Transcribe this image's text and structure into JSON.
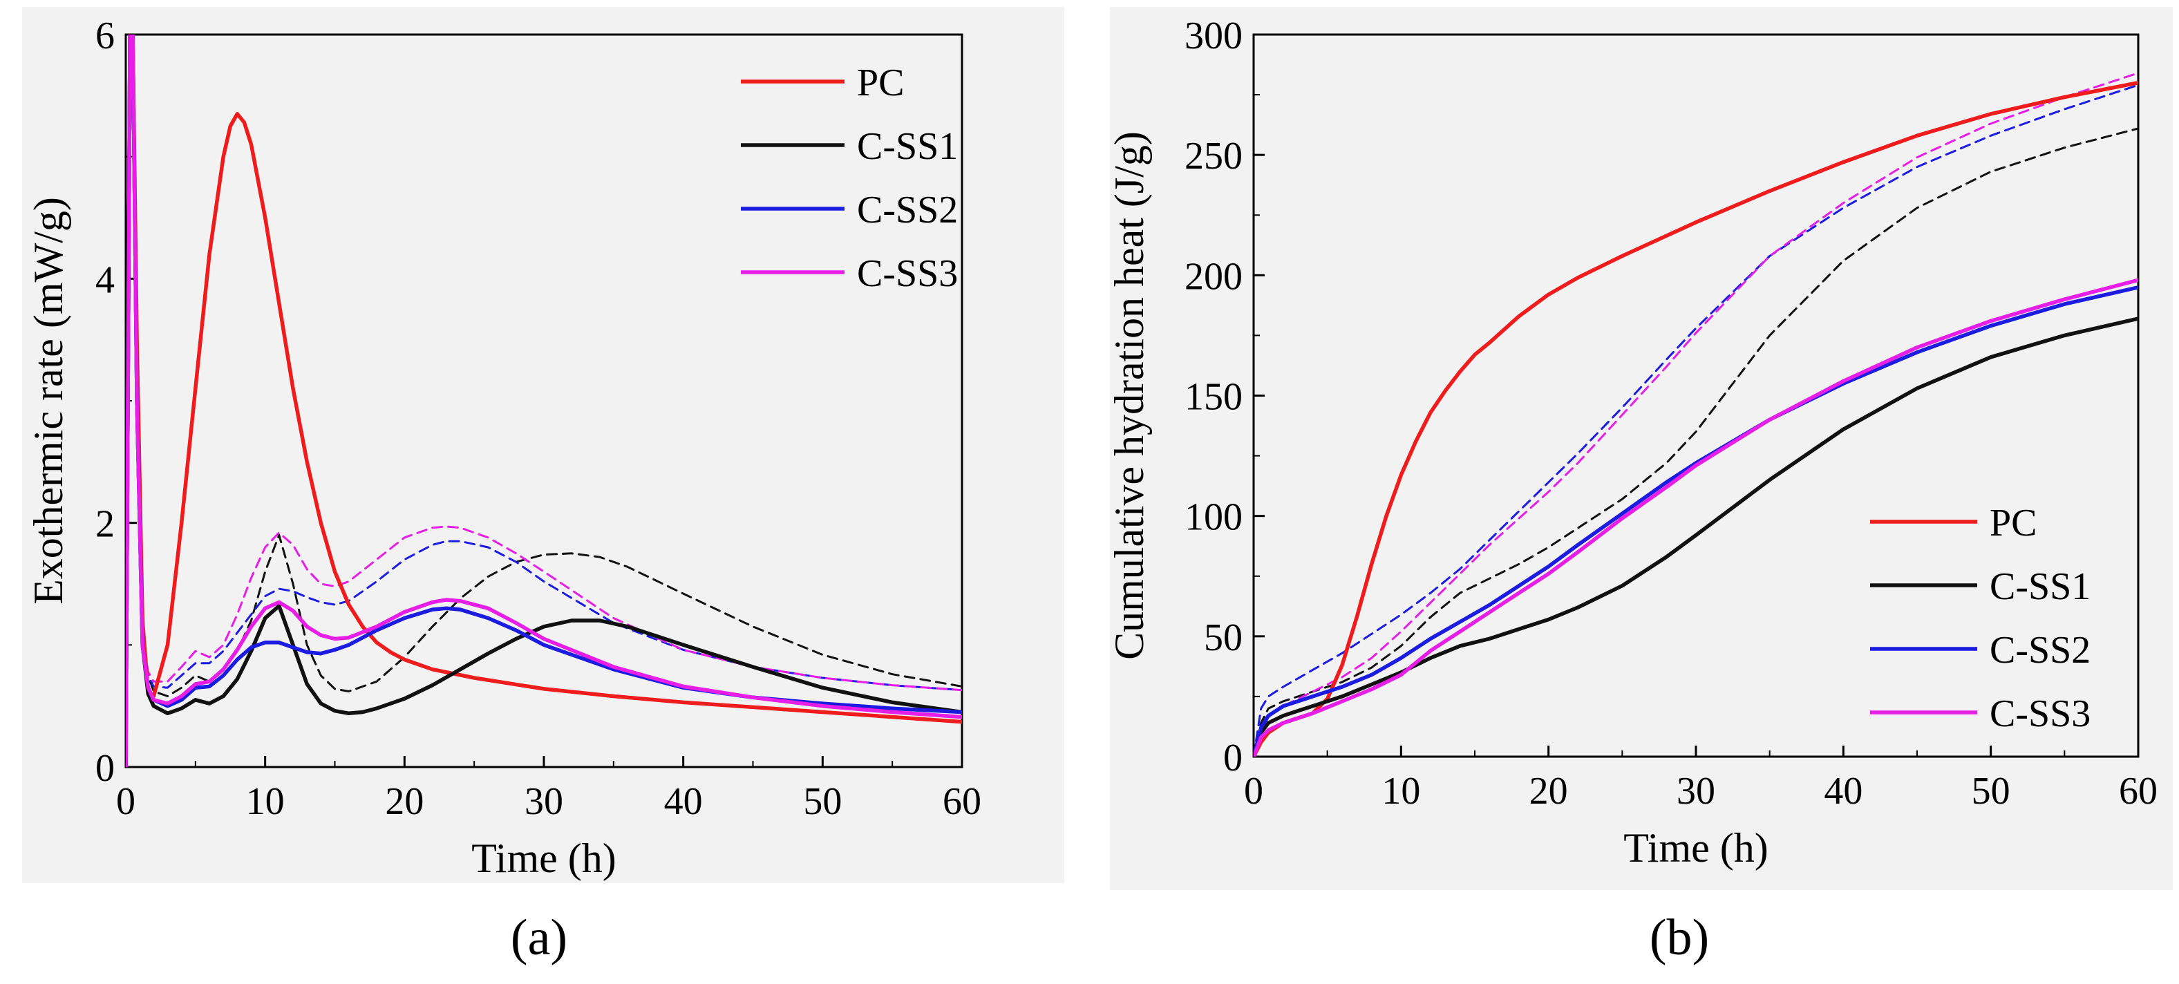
{
  "captions": {
    "a": "(a)",
    "b": "(b)"
  },
  "colors": {
    "PC": "#ee1c1c",
    "C-SS1": "#111111",
    "C-SS2": "#1c1ce0",
    "C-SS3": "#e61ee6"
  },
  "chart_data": [
    {
      "type": "line",
      "panel": "(a)",
      "xlabel": "Time (h)",
      "ylabel": "Exothermic rate (mW/g)",
      "xlim": [
        0,
        60
      ],
      "ylim": [
        0,
        6
      ],
      "xticks": [
        0,
        10,
        20,
        30,
        40,
        50,
        60
      ],
      "yticks": [
        0,
        2,
        4,
        6
      ],
      "legend": [
        "PC",
        "C-SS1",
        "C-SS2",
        "C-SS3"
      ],
      "legend_position": "top-right",
      "series": [
        {
          "name": "PC",
          "style": "solid",
          "x": [
            0,
            0.3,
            0.5,
            0.8,
            1.2,
            1.6,
            2,
            3,
            4,
            5,
            6,
            7,
            7.5,
            8,
            8.5,
            9,
            10,
            11,
            12,
            13,
            14,
            15,
            16,
            17,
            18,
            19,
            20,
            22,
            25,
            30,
            35,
            40,
            45,
            50,
            55,
            60
          ],
          "y": [
            0,
            6,
            6,
            3.5,
            1.2,
            0.62,
            0.58,
            1.0,
            2.0,
            3.1,
            4.2,
            5.0,
            5.25,
            5.35,
            5.28,
            5.1,
            4.5,
            3.8,
            3.1,
            2.5,
            2.0,
            1.6,
            1.33,
            1.15,
            1.02,
            0.94,
            0.88,
            0.8,
            0.73,
            0.64,
            0.58,
            0.53,
            0.49,
            0.45,
            0.41,
            0.37
          ]
        },
        {
          "name": "C-SS1",
          "style": "solid",
          "x": [
            0,
            0.3,
            0.5,
            0.8,
            1.2,
            1.6,
            2,
            3,
            4,
            5,
            6,
            7,
            8,
            9,
            10,
            11,
            12,
            13,
            14,
            15,
            16,
            17,
            18,
            20,
            22,
            24,
            26,
            28,
            30,
            32,
            34,
            36,
            40,
            45,
            50,
            55,
            60
          ],
          "y": [
            0,
            6,
            6,
            3,
            1.0,
            0.6,
            0.5,
            0.44,
            0.48,
            0.55,
            0.52,
            0.58,
            0.72,
            0.95,
            1.22,
            1.32,
            1.0,
            0.68,
            0.52,
            0.46,
            0.44,
            0.45,
            0.48,
            0.56,
            0.67,
            0.8,
            0.93,
            1.05,
            1.15,
            1.2,
            1.2,
            1.15,
            1.0,
            0.82,
            0.65,
            0.53,
            0.45
          ]
        },
        {
          "name": "C-SS2",
          "style": "solid",
          "x": [
            0,
            0.3,
            0.5,
            0.8,
            1.2,
            1.6,
            2,
            3,
            4,
            5,
            6,
            7,
            8,
            9,
            10,
            11,
            12,
            13,
            14,
            15,
            16,
            18,
            20,
            22,
            23,
            24,
            26,
            28,
            30,
            35,
            40,
            45,
            50,
            55,
            60
          ],
          "y": [
            0,
            6,
            6,
            3,
            1.0,
            0.65,
            0.55,
            0.5,
            0.55,
            0.65,
            0.66,
            0.75,
            0.88,
            0.98,
            1.02,
            1.02,
            0.98,
            0.94,
            0.93,
            0.96,
            1.0,
            1.12,
            1.22,
            1.29,
            1.3,
            1.29,
            1.22,
            1.12,
            1.0,
            0.8,
            0.65,
            0.57,
            0.52,
            0.48,
            0.45
          ]
        },
        {
          "name": "C-SS3",
          "style": "solid",
          "x": [
            0,
            0.3,
            0.5,
            0.8,
            1.2,
            1.6,
            2,
            3,
            4,
            5,
            6,
            7,
            8,
            9,
            10,
            11,
            12,
            13,
            14,
            15,
            16,
            18,
            20,
            22,
            23,
            24,
            26,
            28,
            30,
            35,
            40,
            45,
            50,
            55,
            60
          ],
          "y": [
            0,
            6,
            6,
            3,
            1.0,
            0.65,
            0.55,
            0.52,
            0.58,
            0.68,
            0.7,
            0.8,
            0.96,
            1.15,
            1.3,
            1.35,
            1.28,
            1.15,
            1.08,
            1.05,
            1.06,
            1.15,
            1.27,
            1.35,
            1.37,
            1.36,
            1.3,
            1.18,
            1.05,
            0.82,
            0.66,
            0.57,
            0.5,
            0.45,
            0.41
          ]
        },
        {
          "name": "C-SS1 (dashed)",
          "style": "dashed",
          "color_key": "C-SS1",
          "x": [
            0,
            0.3,
            0.5,
            0.8,
            1.2,
            1.6,
            2,
            3,
            4,
            5,
            6,
            7,
            8,
            9,
            10,
            11,
            12,
            13,
            14,
            15,
            16,
            18,
            20,
            22,
            24,
            26,
            28,
            30,
            32,
            34,
            36,
            40,
            45,
            50,
            55,
            60
          ],
          "y": [
            0,
            6,
            6,
            3,
            1.1,
            0.75,
            0.62,
            0.58,
            0.65,
            0.75,
            0.7,
            0.8,
            0.95,
            1.2,
            1.6,
            1.9,
            1.5,
            1.0,
            0.75,
            0.64,
            0.62,
            0.7,
            0.9,
            1.15,
            1.38,
            1.56,
            1.68,
            1.74,
            1.75,
            1.72,
            1.64,
            1.42,
            1.15,
            0.92,
            0.76,
            0.66
          ]
        },
        {
          "name": "C-SS2 (dashed)",
          "style": "dashed",
          "color_key": "C-SS2",
          "x": [
            0,
            0.3,
            0.5,
            0.8,
            1.2,
            1.6,
            2,
            3,
            4,
            5,
            6,
            7,
            8,
            9,
            10,
            11,
            12,
            13,
            14,
            15,
            16,
            18,
            20,
            22,
            23,
            24,
            26,
            28,
            30,
            35,
            40,
            45,
            50,
            55,
            60
          ],
          "y": [
            0,
            6,
            6,
            3,
            1.1,
            0.75,
            0.66,
            0.65,
            0.75,
            0.85,
            0.85,
            0.95,
            1.1,
            1.25,
            1.4,
            1.46,
            1.44,
            1.39,
            1.35,
            1.33,
            1.36,
            1.52,
            1.7,
            1.82,
            1.85,
            1.85,
            1.8,
            1.68,
            1.52,
            1.18,
            0.96,
            0.82,
            0.73,
            0.67,
            0.63
          ]
        },
        {
          "name": "C-SS3 (dashed)",
          "style": "dashed",
          "color_key": "C-SS3",
          "x": [
            0,
            0.3,
            0.5,
            0.8,
            1.2,
            1.6,
            2,
            3,
            4,
            5,
            6,
            7,
            8,
            9,
            10,
            11,
            12,
            13,
            14,
            15,
            16,
            18,
            20,
            22,
            23,
            24,
            26,
            28,
            30,
            35,
            40,
            45,
            50,
            55,
            60
          ],
          "y": [
            0,
            6,
            6,
            3,
            1.1,
            0.78,
            0.7,
            0.7,
            0.82,
            0.95,
            0.9,
            1.0,
            1.25,
            1.55,
            1.8,
            1.92,
            1.82,
            1.62,
            1.5,
            1.48,
            1.52,
            1.7,
            1.88,
            1.96,
            1.97,
            1.96,
            1.88,
            1.75,
            1.6,
            1.22,
            0.96,
            0.82,
            0.73,
            0.67,
            0.63
          ]
        }
      ]
    },
    {
      "type": "line",
      "panel": "(b)",
      "xlabel": "Time (h)",
      "ylabel": "Cumulative hydration heat (J/g)",
      "xlim": [
        0,
        60
      ],
      "ylim": [
        0,
        300
      ],
      "xticks": [
        0,
        10,
        20,
        30,
        40,
        50,
        60
      ],
      "yticks": [
        0,
        50,
        100,
        150,
        200,
        250,
        300
      ],
      "legend": [
        "PC",
        "C-SS1",
        "C-SS2",
        "C-SS3"
      ],
      "legend_position": "bottom-right",
      "series": [
        {
          "name": "PC",
          "style": "solid",
          "x": [
            0,
            0.5,
            1,
            2,
            3,
            4,
            5,
            6,
            7,
            8,
            9,
            10,
            11,
            12,
            13,
            14,
            15,
            16,
            18,
            20,
            22,
            25,
            30,
            35,
            40,
            45,
            50,
            55,
            60
          ],
          "y": [
            0,
            6,
            10,
            14,
            16,
            18,
            24,
            38,
            58,
            80,
            100,
            117,
            131,
            143,
            152,
            160,
            167,
            172,
            183,
            192,
            199,
            208,
            222,
            235,
            247,
            258,
            267,
            274,
            280
          ]
        },
        {
          "name": "C-SS1",
          "style": "solid",
          "x": [
            0,
            0.5,
            1,
            2,
            3,
            4,
            5,
            6,
            8,
            10,
            12,
            14,
            16,
            18,
            20,
            22,
            25,
            28,
            30,
            35,
            40,
            45,
            50,
            55,
            60
          ],
          "y": [
            0,
            10,
            14,
            17,
            19,
            21,
            23,
            25,
            30,
            35,
            41,
            46,
            49,
            53,
            57,
            62,
            71,
            83,
            92,
            115,
            136,
            153,
            166,
            175,
            182
          ]
        },
        {
          "name": "C-SS2",
          "style": "solid",
          "x": [
            0,
            0.5,
            1,
            2,
            4,
            6,
            8,
            10,
            12,
            14,
            16,
            18,
            20,
            22,
            25,
            28,
            30,
            35,
            40,
            45,
            50,
            55,
            60
          ],
          "y": [
            0,
            12,
            17,
            21,
            25,
            29,
            34,
            41,
            49,
            56,
            63,
            71,
            79,
            88,
            101,
            114,
            122,
            140,
            155,
            168,
            179,
            188,
            195
          ]
        },
        {
          "name": "C-SS3",
          "style": "solid",
          "x": [
            0,
            0.5,
            1,
            2,
            4,
            6,
            8,
            10,
            12,
            14,
            16,
            18,
            20,
            22,
            25,
            28,
            30,
            35,
            40,
            45,
            50,
            55,
            60
          ],
          "y": [
            0,
            8,
            11,
            14,
            18,
            23,
            28,
            34,
            44,
            52,
            60,
            68,
            76,
            85,
            99,
            112,
            121,
            140,
            156,
            170,
            181,
            190,
            198
          ]
        },
        {
          "name": "C-SS1 (dashed)",
          "style": "dashed",
          "color_key": "C-SS1",
          "x": [
            0,
            0.5,
            1,
            2,
            4,
            6,
            8,
            10,
            12,
            14,
            16,
            18,
            20,
            22,
            25,
            28,
            30,
            35,
            40,
            45,
            50,
            55,
            60
          ],
          "y": [
            0,
            14,
            20,
            23,
            27,
            31,
            37,
            46,
            58,
            68,
            74,
            80,
            87,
            95,
            107,
            122,
            135,
            175,
            206,
            228,
            243,
            253,
            261
          ]
        },
        {
          "name": "C-SS2 (dashed)",
          "style": "dashed",
          "color_key": "C-SS2",
          "x": [
            0,
            0.5,
            1,
            2,
            4,
            6,
            8,
            10,
            12,
            14,
            16,
            18,
            20,
            22,
            25,
            28,
            30,
            35,
            40,
            45,
            50,
            55,
            60
          ],
          "y": [
            0,
            20,
            25,
            29,
            36,
            43,
            51,
            59,
            68,
            78,
            90,
            102,
            114,
            126,
            145,
            165,
            178,
            208,
            228,
            245,
            258,
            269,
            279
          ]
        },
        {
          "name": "C-SS3 (dashed)",
          "style": "dashed",
          "color_key": "C-SS3",
          "x": [
            0,
            0.5,
            1,
            2,
            4,
            6,
            8,
            10,
            12,
            14,
            16,
            18,
            20,
            22,
            25,
            28,
            30,
            35,
            40,
            45,
            50,
            55,
            60
          ],
          "y": [
            0,
            12,
            17,
            21,
            27,
            33,
            41,
            52,
            64,
            76,
            88,
            99,
            110,
            122,
            142,
            162,
            176,
            208,
            230,
            249,
            263,
            274,
            284
          ]
        }
      ]
    }
  ]
}
